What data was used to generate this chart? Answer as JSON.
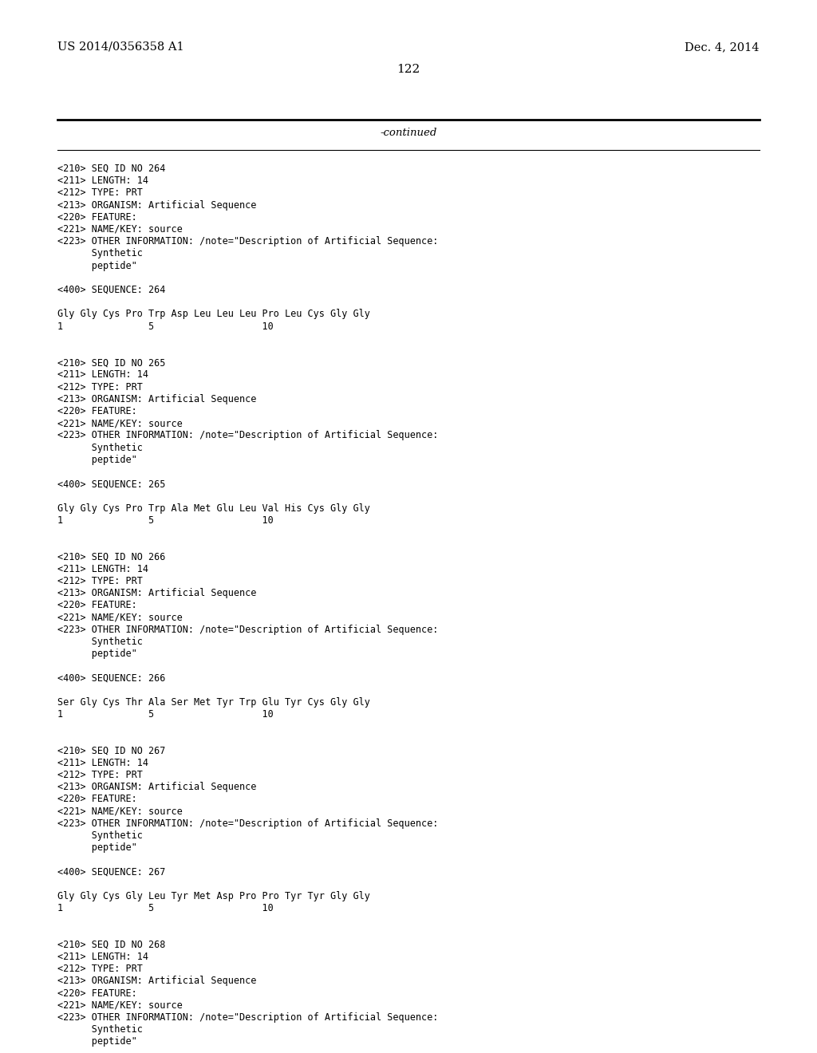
{
  "background_color": "#ffffff",
  "header_left": "US 2014/0356358 A1",
  "header_right": "Dec. 4, 2014",
  "page_number": "122",
  "continued_text": "-continued",
  "content_lines": [
    "<210> SEQ ID NO 264",
    "<211> LENGTH: 14",
    "<212> TYPE: PRT",
    "<213> ORGANISM: Artificial Sequence",
    "<220> FEATURE:",
    "<221> NAME/KEY: source",
    "<223> OTHER INFORMATION: /note=\"Description of Artificial Sequence:",
    "      Synthetic",
    "      peptide\"",
    "",
    "<400> SEQUENCE: 264",
    "",
    "Gly Gly Cys Pro Trp Asp Leu Leu Leu Pro Leu Cys Gly Gly",
    "1               5                   10",
    "",
    "",
    "<210> SEQ ID NO 265",
    "<211> LENGTH: 14",
    "<212> TYPE: PRT",
    "<213> ORGANISM: Artificial Sequence",
    "<220> FEATURE:",
    "<221> NAME/KEY: source",
    "<223> OTHER INFORMATION: /note=\"Description of Artificial Sequence:",
    "      Synthetic",
    "      peptide\"",
    "",
    "<400> SEQUENCE: 265",
    "",
    "Gly Gly Cys Pro Trp Ala Met Glu Leu Val His Cys Gly Gly",
    "1               5                   10",
    "",
    "",
    "<210> SEQ ID NO 266",
    "<211> LENGTH: 14",
    "<212> TYPE: PRT",
    "<213> ORGANISM: Artificial Sequence",
    "<220> FEATURE:",
    "<221> NAME/KEY: source",
    "<223> OTHER INFORMATION: /note=\"Description of Artificial Sequence:",
    "      Synthetic",
    "      peptide\"",
    "",
    "<400> SEQUENCE: 266",
    "",
    "Ser Gly Cys Thr Ala Ser Met Tyr Trp Glu Tyr Cys Gly Gly",
    "1               5                   10",
    "",
    "",
    "<210> SEQ ID NO 267",
    "<211> LENGTH: 14",
    "<212> TYPE: PRT",
    "<213> ORGANISM: Artificial Sequence",
    "<220> FEATURE:",
    "<221> NAME/KEY: source",
    "<223> OTHER INFORMATION: /note=\"Description of Artificial Sequence:",
    "      Synthetic",
    "      peptide\"",
    "",
    "<400> SEQUENCE: 267",
    "",
    "Gly Gly Cys Gly Leu Tyr Met Asp Pro Pro Tyr Tyr Gly Gly",
    "1               5                   10",
    "",
    "",
    "<210> SEQ ID NO 268",
    "<211> LENGTH: 14",
    "<212> TYPE: PRT",
    "<213> ORGANISM: Artificial Sequence",
    "<220> FEATURE:",
    "<221> NAME/KEY: source",
    "<223> OTHER INFORMATION: /note=\"Description of Artificial Sequence:",
    "      Synthetic",
    "      peptide\"",
    "",
    "<400> SEQUENCE: 268"
  ],
  "font_size_header": 10.5,
  "font_size_content": 8.5,
  "font_size_page_num": 11,
  "font_size_continued": 9.5
}
